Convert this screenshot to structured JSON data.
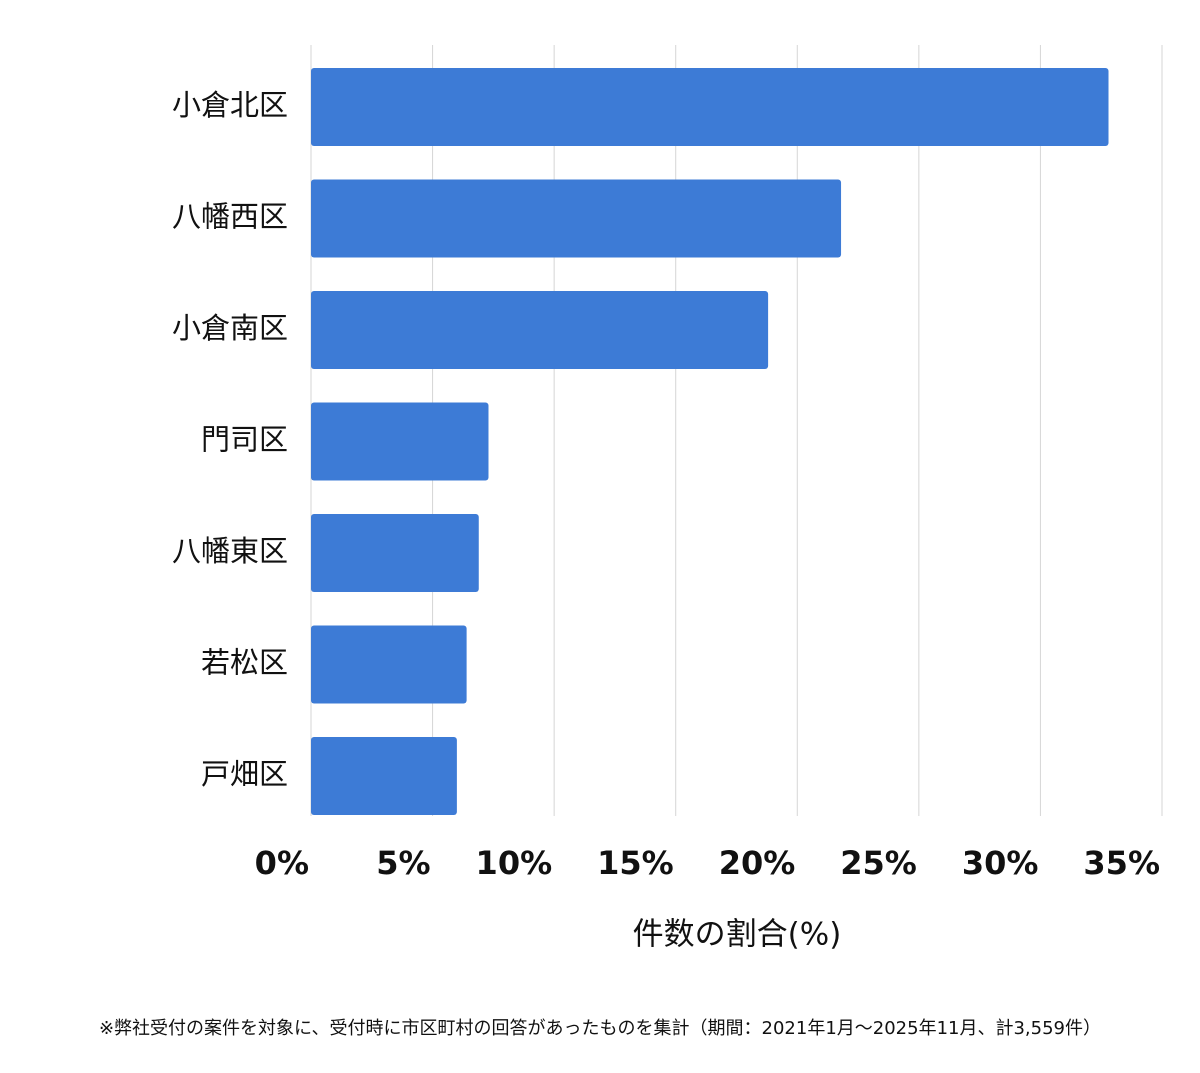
{
  "chart_data": {
    "type": "bar",
    "orientation": "horizontal",
    "categories": [
      "小倉北区",
      "八幡西区",
      "小倉南区",
      "門司区",
      "八幡東区",
      "若松区",
      "戸畑区"
    ],
    "values": [
      32.8,
      21.8,
      18.8,
      7.3,
      6.9,
      6.4,
      6.0
    ],
    "color": "#3d7bd6",
    "xlim": [
      0,
      35
    ],
    "xticks": [
      {
        "value": 0,
        "label": "0%"
      },
      {
        "value": 5,
        "label": "5%"
      },
      {
        "value": 10,
        "label": "10%"
      },
      {
        "value": 15,
        "label": "15%"
      },
      {
        "value": 20,
        "label": "20%"
      },
      {
        "value": 25,
        "label": "25%"
      },
      {
        "value": 30,
        "label": "30%"
      },
      {
        "value": 35,
        "label": "35%"
      }
    ],
    "x_label": "件数の割合(%)",
    "grid": true,
    "footnote": "※弊社受付の案件を対象に、受付時に市区町村の回答があったものを集計（期間：2021年1月～2025年11月、計3,559件）"
  }
}
